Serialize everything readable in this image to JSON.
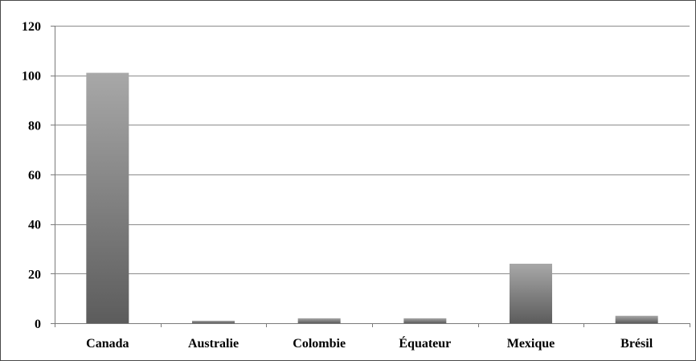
{
  "chart_data": {
    "type": "bar",
    "categories": [
      "Canada",
      "Australie",
      "Colombie",
      "Équateur",
      "Mexique",
      "Brésil"
    ],
    "values": [
      101,
      1,
      2,
      2,
      24,
      3
    ],
    "ylim": [
      0,
      120
    ],
    "yticks": [
      0,
      20,
      40,
      60,
      80,
      100,
      120
    ],
    "grid": true,
    "legend": "none",
    "colors": {
      "bar_top": "#a8a8a8",
      "bar_bottom": "#5c5c5c",
      "grid": "#8c8c8c",
      "axis": "#7a7a7a"
    }
  }
}
